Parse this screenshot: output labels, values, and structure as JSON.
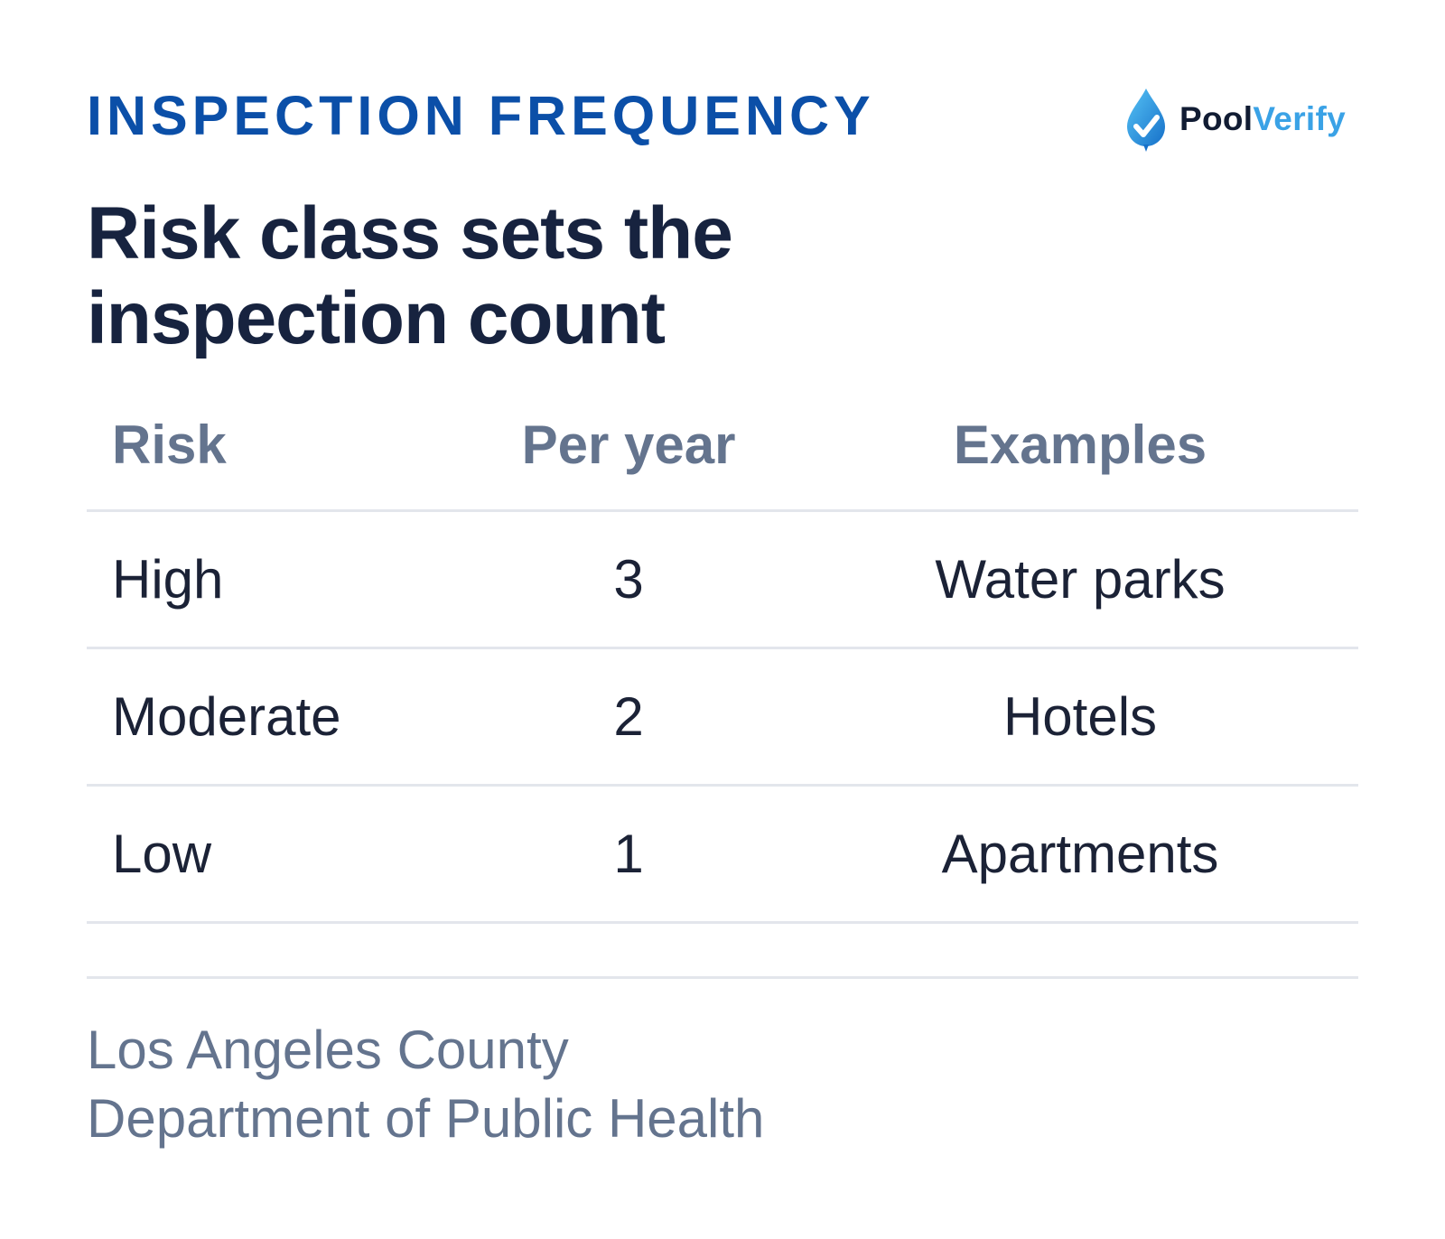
{
  "header": {
    "eyebrow": "INSPECTION FREQUENCY",
    "title_line1": "Risk class sets the",
    "title_line2": "inspection count"
  },
  "logo": {
    "icon": "water-drop-check-icon",
    "text_part1": "Pool",
    "text_part2": "Verify",
    "colors": {
      "dark": "#111c33",
      "accent": "#3aa2e6"
    }
  },
  "table": {
    "columns": [
      "Risk",
      "Per year",
      "Examples"
    ],
    "rows": [
      {
        "risk": "High",
        "per_year": "3",
        "examples": "Water parks"
      },
      {
        "risk": "Moderate",
        "per_year": "2",
        "examples": "Hotels"
      },
      {
        "risk": "Low",
        "per_year": "1",
        "examples": "Apartments"
      }
    ]
  },
  "source": {
    "line1": "Los Angeles County",
    "line2": "Department of Public Health"
  },
  "colors": {
    "eyebrow": "#0b4fa8",
    "headline": "#17233f",
    "muted": "#64748e",
    "rule": "#e3e6ec"
  }
}
